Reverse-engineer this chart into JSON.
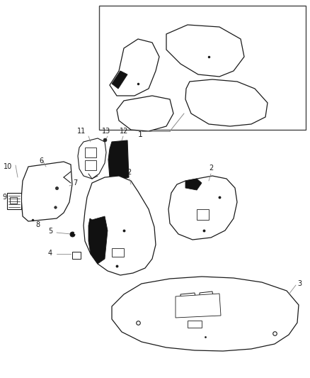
{
  "bg_color": "#ffffff",
  "dark": "#1a1a1a",
  "gray": "#888888",
  "light": "#f5f5f5"
}
